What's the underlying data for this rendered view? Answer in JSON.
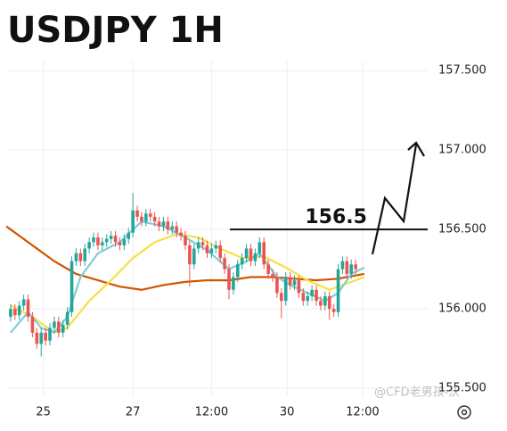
{
  "chart_data": {
    "type": "candlestick",
    "title": "USDJPY 1H",
    "xlim": [
      -0.8,
      95.5
    ],
    "ylim": [
      155.45,
      157.9
    ],
    "xticks": [
      {
        "value": 7.5,
        "label": "25"
      },
      {
        "value": 28,
        "label": "27"
      },
      {
        "value": 46,
        "label": "12:00"
      },
      {
        "value": 63.3,
        "label": "30"
      },
      {
        "value": 80.6,
        "label": "12:00"
      }
    ],
    "yticks": [
      {
        "value": 155.5,
        "label": "155.500"
      },
      {
        "value": 156,
        "label": "156.000"
      },
      {
        "value": 156.5,
        "label": "156.500"
      },
      {
        "value": 157,
        "label": "157.000"
      },
      {
        "value": 157.5,
        "label": "157.500"
      }
    ],
    "grid": true,
    "up_color": "#26a69a",
    "down_color": "#ef5350",
    "open": [
      155.95,
      156.0,
      155.96,
      156.02,
      156.06,
      155.95,
      155.85,
      155.78,
      155.85,
      155.8,
      155.88,
      155.92,
      155.85,
      155.9,
      155.98,
      156.3,
      156.35,
      156.3,
      156.38,
      156.42,
      156.45,
      156.4,
      156.42,
      156.44,
      156.46,
      156.42,
      156.4,
      156.44,
      156.48,
      156.62,
      156.58,
      156.55,
      156.6,
      156.58,
      156.55,
      156.52,
      156.55,
      156.5,
      156.52,
      156.48,
      156.46,
      156.4,
      156.28,
      156.38,
      156.42,
      156.4,
      156.35,
      156.38,
      156.4,
      156.32,
      156.25,
      156.12,
      156.2,
      156.28,
      156.32,
      156.38,
      156.3,
      156.35,
      156.42,
      156.28,
      156.22,
      156.2,
      156.1,
      156.05,
      156.2,
      156.15,
      156.18,
      156.1,
      156.05,
      156.08,
      156.12,
      156.05,
      156.02,
      156.08,
      156.0,
      155.98,
      156.25,
      156.3,
      156.22,
      156.28
    ],
    "high": [
      156.03,
      156.03,
      156.05,
      156.09,
      156.09,
      155.98,
      155.88,
      155.88,
      155.88,
      155.91,
      155.95,
      155.95,
      155.93,
      156.01,
      156.33,
      156.38,
      156.38,
      156.41,
      156.45,
      156.48,
      156.48,
      156.45,
      156.47,
      156.49,
      156.49,
      156.45,
      156.47,
      156.51,
      156.73,
      156.65,
      156.61,
      156.63,
      156.63,
      156.61,
      156.58,
      156.58,
      156.58,
      156.55,
      156.55,
      156.51,
      156.49,
      156.43,
      156.41,
      156.45,
      156.45,
      156.43,
      156.41,
      156.43,
      156.43,
      156.35,
      156.28,
      156.23,
      156.31,
      156.35,
      156.41,
      156.41,
      156.38,
      156.45,
      156.45,
      156.31,
      156.25,
      156.23,
      156.13,
      156.23,
      156.23,
      156.21,
      156.21,
      156.13,
      156.11,
      156.15,
      156.15,
      156.08,
      156.11,
      156.11,
      156.03,
      156.28,
      156.33,
      156.33,
      156.31,
      156.31
    ],
    "low": [
      155.92,
      155.93,
      155.93,
      155.99,
      155.92,
      155.82,
      155.75,
      155.7,
      155.77,
      155.77,
      155.85,
      155.82,
      155.82,
      155.87,
      155.95,
      156.27,
      156.27,
      156.27,
      156.35,
      156.39,
      156.37,
      156.37,
      156.39,
      156.41,
      156.39,
      156.37,
      156.37,
      156.41,
      156.45,
      156.55,
      156.52,
      156.52,
      156.55,
      156.52,
      156.49,
      156.49,
      156.47,
      156.47,
      156.45,
      156.43,
      156.37,
      156.14,
      156.25,
      156.35,
      156.37,
      156.32,
      156.32,
      156.35,
      156.29,
      156.22,
      156.06,
      156.09,
      156.17,
      156.25,
      156.29,
      156.27,
      156.27,
      156.32,
      156.25,
      156.19,
      156.17,
      156.07,
      155.94,
      156.02,
      156.12,
      156.12,
      156.07,
      156.02,
      156.02,
      156.05,
      156.02,
      155.99,
      155.99,
      155.93,
      155.95,
      155.95,
      156.22,
      156.19,
      156.19,
      156.22
    ],
    "close": [
      156.0,
      155.96,
      156.02,
      156.06,
      155.95,
      155.85,
      155.78,
      155.85,
      155.8,
      155.88,
      155.92,
      155.85,
      155.9,
      155.98,
      156.3,
      156.35,
      156.3,
      156.38,
      156.42,
      156.45,
      156.4,
      156.42,
      156.44,
      156.46,
      156.42,
      156.4,
      156.44,
      156.48,
      156.62,
      156.58,
      156.55,
      156.6,
      156.58,
      156.55,
      156.52,
      156.55,
      156.5,
      156.52,
      156.48,
      156.46,
      156.4,
      156.28,
      156.38,
      156.42,
      156.4,
      156.35,
      156.38,
      156.4,
      156.32,
      156.25,
      156.12,
      156.2,
      156.28,
      156.32,
      156.38,
      156.3,
      156.35,
      156.42,
      156.28,
      156.22,
      156.2,
      156.1,
      156.05,
      156.2,
      156.15,
      156.18,
      156.1,
      156.05,
      156.08,
      156.12,
      156.05,
      156.02,
      156.08,
      156.0,
      155.98,
      156.25,
      156.3,
      156.22,
      156.28,
      156.25
    ],
    "lines": [
      {
        "color": "#d35400",
        "x": [
          -1,
          5,
          10,
          15,
          20,
          25,
          30,
          35,
          40,
          45,
          50,
          55,
          60,
          65,
          70,
          75,
          81
        ],
        "values": [
          156.52,
          156.4,
          156.3,
          156.22,
          156.18,
          156.14,
          156.12,
          156.15,
          156.17,
          156.18,
          156.18,
          156.2,
          156.2,
          156.19,
          156.18,
          156.19,
          156.22
        ]
      },
      {
        "color": "#f5e142",
        "x": [
          0,
          5,
          10,
          13,
          18,
          23,
          28,
          33,
          38,
          43,
          48,
          53,
          58,
          63,
          68,
          73,
          78,
          81
        ],
        "values": [
          156.02,
          155.95,
          155.85,
          155.88,
          156.05,
          156.18,
          156.32,
          156.42,
          156.47,
          156.45,
          156.38,
          156.32,
          156.33,
          156.26,
          156.18,
          156.12,
          156.17,
          156.2
        ]
      },
      {
        "color": "#7ccfd6",
        "x": [
          0,
          4,
          7,
          10,
          13,
          16,
          20,
          25,
          30,
          35,
          40,
          45,
          50,
          54,
          57,
          61,
          64,
          68,
          72,
          75,
          78,
          81
        ],
        "values": [
          155.85,
          155.98,
          155.88,
          155.85,
          155.95,
          156.2,
          156.35,
          156.42,
          156.55,
          156.52,
          156.45,
          156.37,
          156.25,
          156.3,
          156.35,
          156.2,
          156.15,
          156.1,
          156.05,
          156.1,
          156.22,
          156.26
        ]
      }
    ],
    "hline": {
      "value": 156.5,
      "x": [
        50.2,
        95.5
      ]
    },
    "annotation": "156.5",
    "watermark": "@CFD老男孩-沃"
  }
}
